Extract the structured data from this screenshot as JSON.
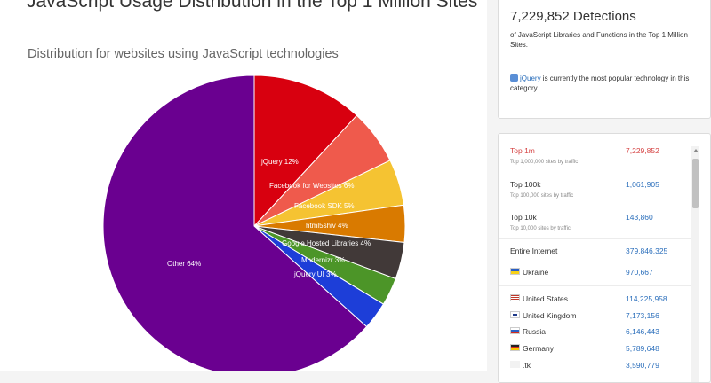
{
  "header": {
    "title": "JavaScript Usage Distribution in the Top 1 Million Sites",
    "subtitle": "Distribution for websites using JavaScript technologies"
  },
  "chart_data": {
    "type": "pie",
    "title": "JavaScript Usage Distribution in the Top 1 Million Sites",
    "subtitle": "Distribution for websites using JavaScript technologies",
    "slices": [
      {
        "label": "jQuery 12%",
        "name": "jQuery",
        "value": 12,
        "color": "#d8000f"
      },
      {
        "label": "Facebook for Websites 6%",
        "name": "Facebook for Websites",
        "value": 6,
        "color": "#ef5a4c"
      },
      {
        "label": "Facebook SDK 5%",
        "name": "Facebook SDK",
        "value": 5,
        "color": "#f5c332"
      },
      {
        "label": "html5shiv 4%",
        "name": "html5shiv",
        "value": 4,
        "color": "#d97a00"
      },
      {
        "label": "Google Hosted Libraries 4%",
        "name": "Google Hosted Libraries",
        "value": 4,
        "color": "#413938"
      },
      {
        "label": "Modernizr 3%",
        "name": "Modernizr",
        "value": 3,
        "color": "#4c9528"
      },
      {
        "label": "jQuery UI 3%",
        "name": "jQuery UI",
        "value": 3,
        "color": "#1d3ed8"
      },
      {
        "label": "Other 64%",
        "name": "Other",
        "value": 64,
        "color": "#6a0090"
      }
    ]
  },
  "summary": {
    "detections": "7,229,852 Detections",
    "description": "of JavaScript Libraries and Functions in the Top 1 Million Sites.",
    "popular_link": "jQuery",
    "popular_text": " is currently the most popular technology in this category.",
    "popular_icon": "jquery-icon"
  },
  "stats": {
    "rows": [
      {
        "label": "Top 1m",
        "sub": "Top 1,000,000 sites by traffic",
        "value": "7,229,852",
        "active": true
      },
      {
        "label": "Top 100k",
        "sub": "Top 100,000 sites by traffic",
        "value": "1,061,905"
      },
      {
        "label": "Top 10k",
        "sub": "Top 10,000 sites by traffic",
        "value": "143,860"
      },
      {
        "label": "Entire Internet",
        "value": "379,846,325"
      },
      {
        "label": "Ukraine",
        "value": "970,667",
        "flag": "ukraine-flag"
      },
      {
        "label": "United States",
        "value": "114,225,958",
        "flag": "us-flag"
      },
      {
        "label": "United Kingdom",
        "value": "7,173,156",
        "flag": "uk-flag"
      },
      {
        "label": "Russia",
        "value": "6,146,443",
        "flag": "russia-flag"
      },
      {
        "label": "Germany",
        "value": "5,789,648",
        "flag": "germany-flag"
      },
      {
        "label": ".tk",
        "value": "3,590,779",
        "flag": "tk-icon"
      }
    ]
  }
}
